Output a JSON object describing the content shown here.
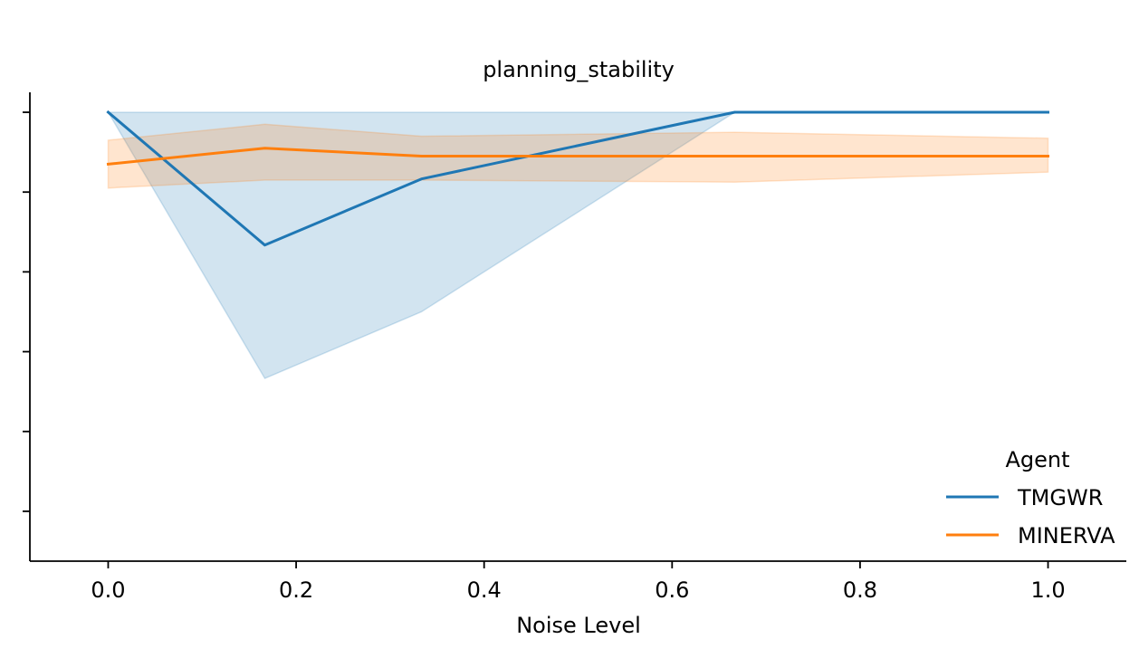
{
  "chart_data": {
    "type": "line",
    "title": "planning_stability",
    "xlabel": "Noise Level",
    "ylabel": "",
    "xlim": [
      -0.0833,
      1.0833
    ],
    "ylim": [
      -0.125,
      1.05
    ],
    "x_ticks": [
      0.0,
      0.2,
      0.4,
      0.6,
      0.8,
      1.0
    ],
    "x_tick_labels": [
      "0.0",
      "0.2",
      "0.4",
      "0.6",
      "0.8",
      "1.0"
    ],
    "y_ticks": [
      0.0,
      0.2,
      0.4,
      0.6,
      0.8,
      1.0
    ],
    "y_tick_labels": [
      "",
      "",
      "",
      "",
      "",
      ""
    ],
    "grid": false,
    "legend": {
      "title": "Agent",
      "placement": "bottom-right"
    },
    "series": [
      {
        "name": "TMGWR",
        "color": "#1f77b4",
        "x": [
          0.0,
          0.1667,
          0.3333,
          0.6667,
          1.0
        ],
        "y": [
          1.0,
          0.667,
          0.833,
          1.0,
          1.0
        ],
        "ci_lower": [
          1.0,
          0.333,
          0.5,
          1.0,
          1.0
        ],
        "ci_upper": [
          1.0,
          1.0,
          1.0,
          1.0,
          1.0
        ]
      },
      {
        "name": "MINERVA",
        "color": "#ff7f0e",
        "x": [
          0.0,
          0.1667,
          0.3333,
          0.6667,
          1.0
        ],
        "y": [
          0.87,
          0.91,
          0.89,
          0.89,
          0.89
        ],
        "ci_lower": [
          0.81,
          0.83,
          0.83,
          0.825,
          0.85
        ],
        "ci_upper": [
          0.93,
          0.97,
          0.94,
          0.95,
          0.935
        ]
      }
    ]
  }
}
